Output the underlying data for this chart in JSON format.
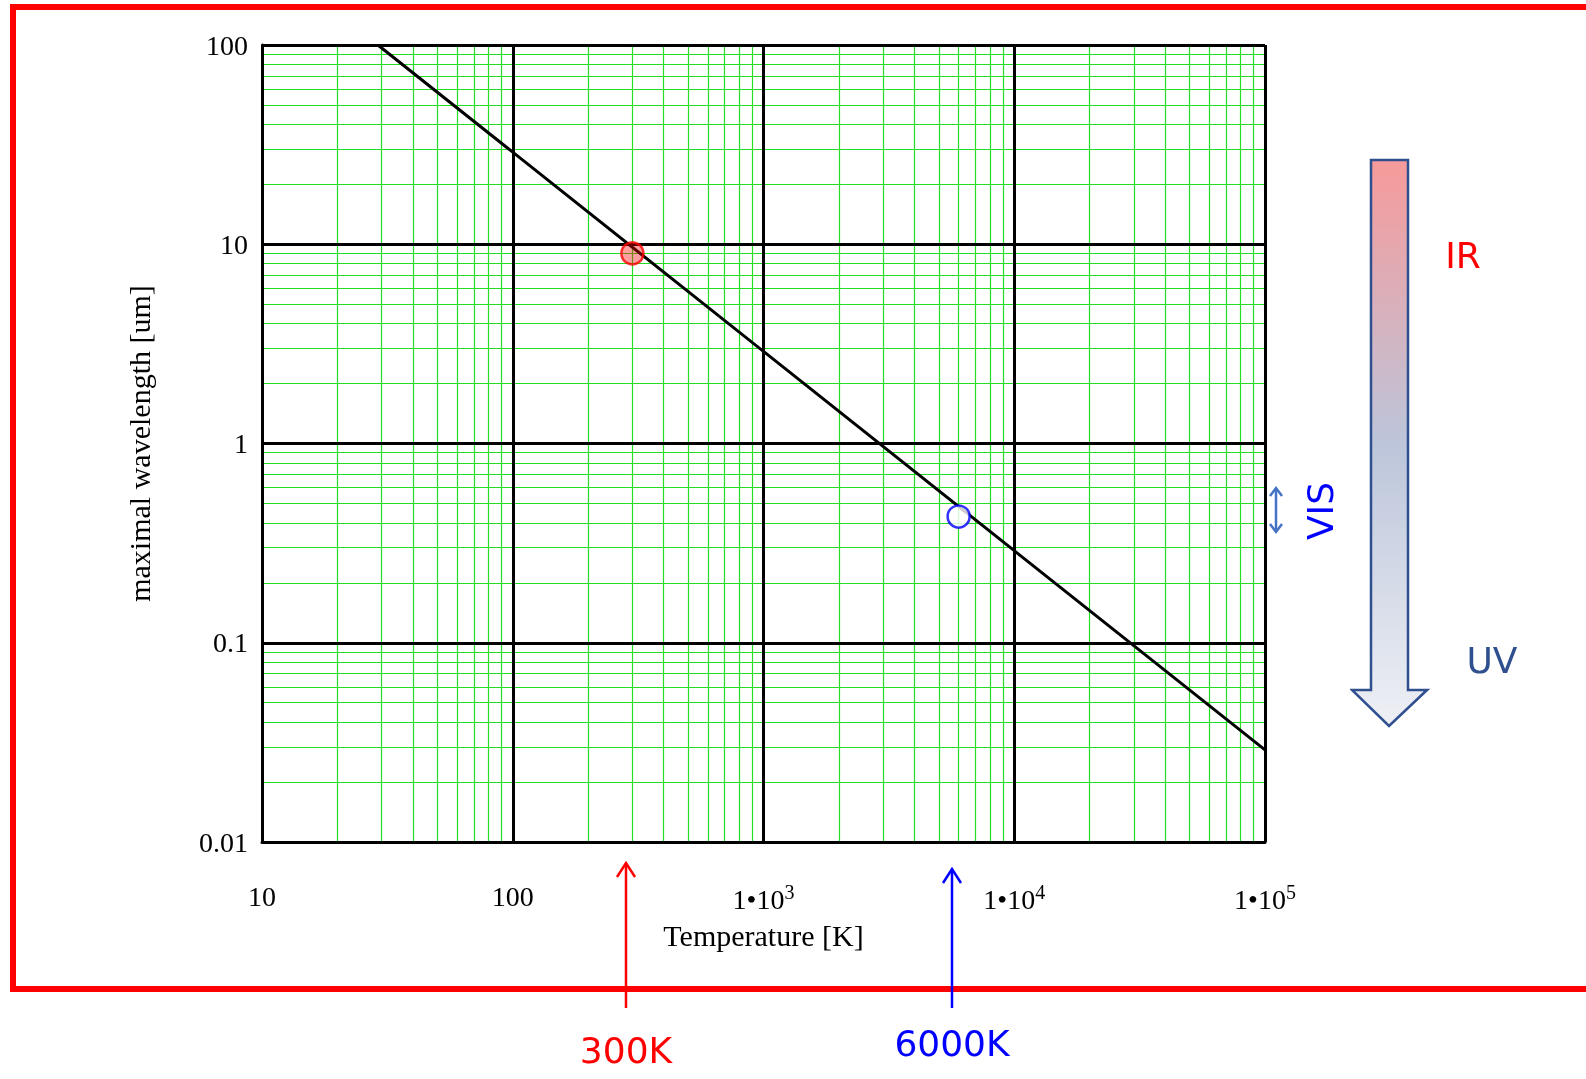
{
  "chart_data": {
    "type": "line",
    "xlabel": "Temperature [K]",
    "ylabel": "maximal wavelength [um]",
    "log": "xy",
    "grid": true,
    "xlim": [
      10,
      100000
    ],
    "xticks": [
      10,
      {
        "value": 20,
        "label": null
      },
      {
        "value": 30,
        "label": null
      },
      {
        "value": 40,
        "label": null
      },
      {
        "value": 50,
        "label": null
      },
      {
        "value": 60,
        "label": null
      },
      {
        "value": 70,
        "label": null
      },
      {
        "value": 80,
        "label": null
      },
      {
        "value": 90,
        "label": null
      },
      100,
      {
        "value": 200,
        "label": null
      },
      {
        "value": 300,
        "label": null
      },
      {
        "value": 400,
        "label": null
      },
      {
        "value": 500,
        "label": null
      },
      {
        "value": 600,
        "label": null
      },
      {
        "value": 700,
        "label": null
      },
      {
        "value": 800,
        "label": null
      },
      {
        "value": 900,
        "label": null
      },
      {
        "value": 1000,
        "label": "1•10$^{3}$"
      },
      {
        "value": 2000,
        "label": null
      },
      {
        "value": 3000,
        "label": null
      },
      {
        "value": 4000,
        "label": null
      },
      {
        "value": 5000,
        "label": null
      },
      {
        "value": 6000,
        "label": null
      },
      {
        "value": 7000,
        "label": null
      },
      {
        "value": 8000,
        "label": null
      },
      {
        "value": 9000,
        "label": null
      },
      {
        "value": 10000,
        "label": "1•10$^{4}$"
      },
      {
        "value": 20000,
        "label": null
      },
      {
        "value": 30000,
        "label": null
      },
      {
        "value": 40000,
        "label": null
      },
      {
        "value": 50000,
        "label": null
      },
      {
        "value": 60000,
        "label": null
      },
      {
        "value": 70000,
        "label": null
      },
      {
        "value": 80000,
        "label": null
      },
      {
        "value": 90000,
        "label": null
      },
      {
        "value": 100000,
        "label": "1•10$^{5}$"
      }
    ],
    "ylim": [
      0.01,
      100
    ],
    "yticks": [
      0.01,
      {
        "value": 0.02,
        "label": null
      },
      {
        "value": 0.03,
        "label": null
      },
      {
        "value": 0.04,
        "label": null
      },
      {
        "value": 0.05,
        "label": null
      },
      {
        "value": 0.06,
        "label": null
      },
      {
        "value": 0.07,
        "label": null
      },
      {
        "value": 0.08,
        "label": null
      },
      {
        "value": 0.09,
        "label": null
      },
      0.1,
      {
        "value": 0.2,
        "label": null
      },
      {
        "value": 0.3,
        "label": null
      },
      {
        "value": 0.4,
        "label": null
      },
      {
        "value": 0.5,
        "label": null
      },
      {
        "value": 0.6,
        "label": null
      },
      {
        "value": 0.7,
        "label": null
      },
      {
        "value": 0.8,
        "label": null
      },
      {
        "value": 0.9,
        "label": null
      },
      1,
      {
        "value": 2,
        "label": null
      },
      {
        "value": 3,
        "label": null
      },
      {
        "value": 4,
        "label": null
      },
      {
        "value": 5,
        "label": null
      },
      {
        "value": 6,
        "label": null
      },
      {
        "value": 7,
        "label": null
      },
      {
        "value": 8,
        "label": null
      },
      {
        "value": 9,
        "label": null
      },
      10,
      {
        "value": 20,
        "label": null
      },
      {
        "value": 30,
        "label": null
      },
      {
        "value": 40,
        "label": null
      },
      {
        "value": 50,
        "label": null
      },
      {
        "value": 60,
        "label": null
      },
      {
        "value": 70,
        "label": null
      },
      {
        "value": 80,
        "label": null
      },
      {
        "value": 90,
        "label": null
      },
      100
    ],
    "series": [
      {
        "color": "#000000",
        "marker": "none",
        "x": [
          28.98,
          100,
          1000,
          10000,
          100000
        ],
        "values": [
          100,
          28.98,
          2.898,
          0.2898,
          0.02898
        ]
      },
      {
        "type": "scatter",
        "marker": "circle",
        "color": "#ff0000",
        "x": [
          300
        ],
        "values": [
          9
        ]
      },
      {
        "type": "scatter",
        "marker": "circle",
        "color": "#0000ff",
        "x": [
          6000
        ],
        "values": [
          0.43
        ]
      }
    ],
    "annotations": [
      "IR",
      "UV",
      "VIS",
      "300K",
      "6000K"
    ]
  }
}
